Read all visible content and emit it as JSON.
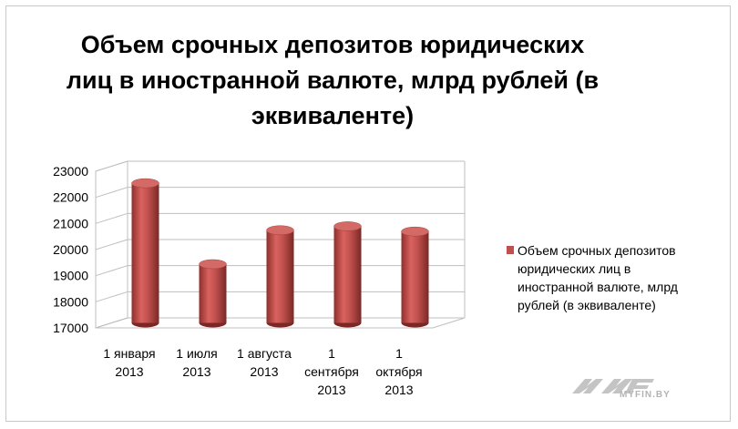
{
  "chart_data": {
    "type": "bar",
    "title_lines": [
      "Объем  срочных депозитов юридических",
      "лиц в иностранной валюте, млрд рублей (в",
      "эквиваленте)"
    ],
    "categories": [
      [
        "1 января",
        "2013"
      ],
      [
        "1 июля",
        "2013"
      ],
      [
        "1 августа",
        "2013"
      ],
      [
        "1",
        "сентября",
        "2013"
      ],
      [
        "1",
        "октября",
        "2013"
      ]
    ],
    "series": [
      {
        "name_lines": [
          "Объем  срочных депозитов",
          "юридических  лиц в",
          "иностранной валюте, млрд",
          "рублей (в эквиваленте)"
        ],
        "values": [
          22350,
          19250,
          20550,
          20700,
          20500
        ],
        "color": "#c0504d"
      }
    ],
    "y_ticks": [
      "23000",
      "22000",
      "21000",
      "20000",
      "19000",
      "18000",
      "17000"
    ],
    "ylim": [
      17000,
      23000
    ],
    "grid": true,
    "legend": "right",
    "bar_shape": "3d-cylinder"
  },
  "watermark": {
    "text": "MYFIN.BY"
  }
}
